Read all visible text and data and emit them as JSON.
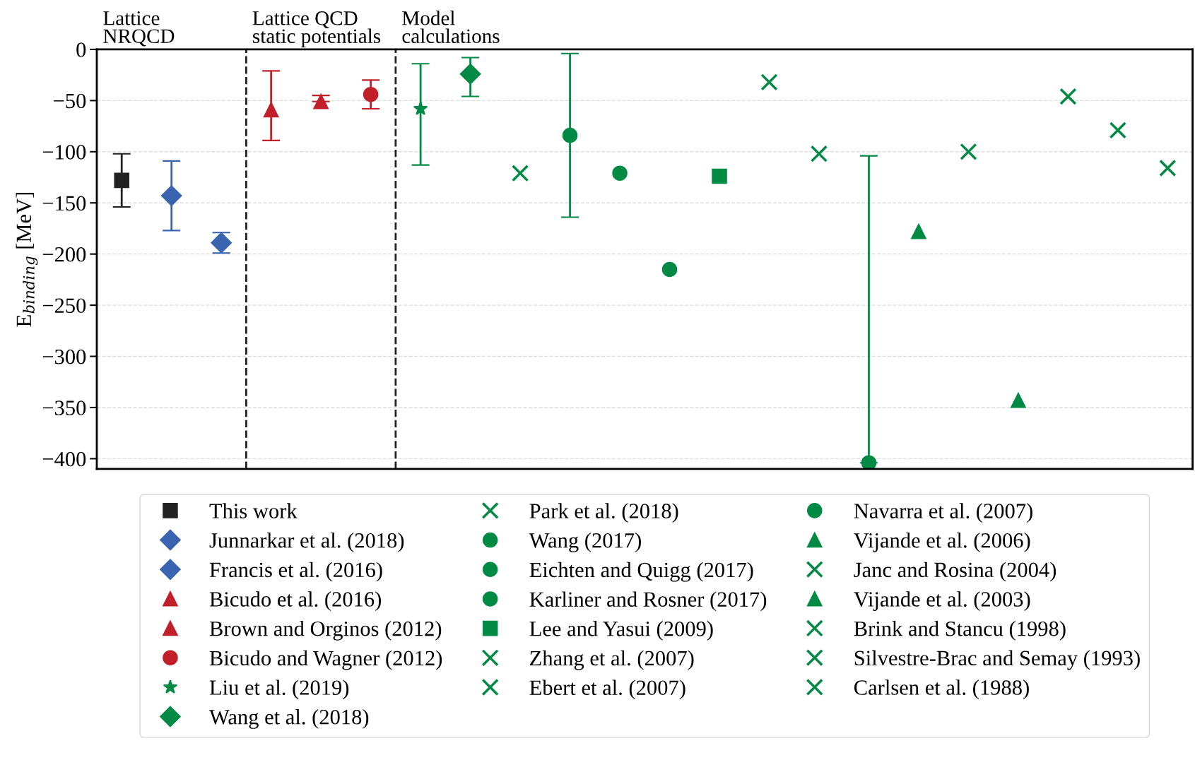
{
  "chart_data": {
    "type": "scatter",
    "categories": [
      null,
      null,
      null,
      null,
      null,
      null,
      null,
      null,
      null,
      null,
      null,
      null,
      null,
      null,
      null,
      null,
      null,
      null,
      null,
      null,
      null,
      null
    ],
    "ylabel": "E$_{binding}$ [MeV]",
    "ylim": [
      -410,
      0
    ],
    "yticks": [
      0,
      {
        "value": -50,
        "label": "−50"
      },
      {
        "value": -100,
        "label": "−100"
      },
      {
        "value": -150,
        "label": "−150"
      },
      {
        "value": -200,
        "label": "−200"
      },
      {
        "value": -250,
        "label": "−250"
      },
      {
        "value": -300,
        "label": "−300"
      },
      {
        "value": -350,
        "label": "−350"
      },
      {
        "value": -400,
        "label": "−400"
      }
    ],
    "tick_labels": "y",
    "grid": "y",
    "legend": "bottom",
    "annotations": [
      "Lattice\nNRQCD",
      "Lattice QCD\nstatic potentials",
      "Model\ncalculations"
    ],
    "series": [
      {
        "name": "This work",
        "color": "#222222",
        "marker": "square",
        "values": [
          -128,
          null,
          null,
          null,
          null,
          null,
          null,
          null,
          null,
          null,
          null,
          null,
          null,
          null,
          null,
          null,
          null,
          null,
          null,
          null,
          null,
          null
        ],
        "errors": [
          [
            -154,
            -102
          ],
          null,
          null,
          null,
          null,
          null,
          null,
          null,
          null,
          null,
          null,
          null,
          null,
          null,
          null,
          null,
          null,
          null,
          null,
          null,
          null,
          null
        ]
      },
      {
        "name": "Junnarkar et al. (2018)",
        "color": "#3a64b0",
        "marker": "diamond",
        "values": [
          null,
          -143,
          null,
          null,
          null,
          null,
          null,
          null,
          null,
          null,
          null,
          null,
          null,
          null,
          null,
          null,
          null,
          null,
          null,
          null,
          null,
          null
        ],
        "errors": [
          null,
          [
            -177,
            -109
          ],
          null,
          null,
          null,
          null,
          null,
          null,
          null,
          null,
          null,
          null,
          null,
          null,
          null,
          null,
          null,
          null,
          null,
          null,
          null,
          null
        ]
      },
      {
        "name": "Francis et al. (2016)",
        "color": "#3a64b0",
        "marker": "diamond",
        "values": [
          null,
          null,
          -189,
          null,
          null,
          null,
          null,
          null,
          null,
          null,
          null,
          null,
          null,
          null,
          null,
          null,
          null,
          null,
          null,
          null,
          null,
          null
        ],
        "errors": [
          null,
          null,
          [
            -199,
            -179
          ],
          null,
          null,
          null,
          null,
          null,
          null,
          null,
          null,
          null,
          null,
          null,
          null,
          null,
          null,
          null,
          null,
          null,
          null,
          null
        ]
      },
      {
        "name": "Bicudo et al. (2016)",
        "color": "#c1202a",
        "marker": "triangle",
        "values": [
          null,
          null,
          null,
          -59,
          null,
          null,
          null,
          null,
          null,
          null,
          null,
          null,
          null,
          null,
          null,
          null,
          null,
          null,
          null,
          null,
          null,
          null
        ],
        "errors": [
          null,
          null,
          null,
          [
            -89,
            -21
          ],
          null,
          null,
          null,
          null,
          null,
          null,
          null,
          null,
          null,
          null,
          null,
          null,
          null,
          null,
          null,
          null,
          null,
          null
        ]
      },
      {
        "name": "Brown and Orginos (2012)",
        "color": "#c1202a",
        "marker": "triangle",
        "values": [
          null,
          null,
          null,
          null,
          -51,
          null,
          null,
          null,
          null,
          null,
          null,
          null,
          null,
          null,
          null,
          null,
          null,
          null,
          null,
          null,
          null,
          null
        ],
        "errors": [
          null,
          null,
          null,
          null,
          [
            -51,
            -45
          ],
          null,
          null,
          null,
          null,
          null,
          null,
          null,
          null,
          null,
          null,
          null,
          null,
          null,
          null,
          null,
          null,
          null
        ]
      },
      {
        "name": "Bicudo and Wagner (2012)",
        "color": "#c1202a",
        "marker": "circle",
        "values": [
          null,
          null,
          null,
          null,
          null,
          -44,
          null,
          null,
          null,
          null,
          null,
          null,
          null,
          null,
          null,
          null,
          null,
          null,
          null,
          null,
          null,
          null
        ],
        "errors": [
          null,
          null,
          null,
          null,
          null,
          [
            -58,
            -30
          ],
          null,
          null,
          null,
          null,
          null,
          null,
          null,
          null,
          null,
          null,
          null,
          null,
          null,
          null,
          null,
          null
        ]
      },
      {
        "name": "Liu et al. (2019)",
        "color": "#008a43",
        "marker": "star",
        "values": [
          null,
          null,
          null,
          null,
          null,
          null,
          -58,
          null,
          null,
          null,
          null,
          null,
          null,
          null,
          null,
          null,
          null,
          null,
          null,
          null,
          null,
          null
        ],
        "errors": [
          null,
          null,
          null,
          null,
          null,
          null,
          [
            -113,
            -14
          ],
          null,
          null,
          null,
          null,
          null,
          null,
          null,
          null,
          null,
          null,
          null,
          null,
          null,
          null,
          null
        ]
      },
      {
        "name": "Wang et al. (2018)",
        "color": "#008a43",
        "marker": "diamond",
        "values": [
          null,
          null,
          null,
          null,
          null,
          null,
          null,
          -24,
          null,
          null,
          null,
          null,
          null,
          null,
          null,
          null,
          null,
          null,
          null,
          null,
          null,
          null
        ],
        "errors": [
          null,
          null,
          null,
          null,
          null,
          null,
          null,
          [
            -46,
            -8
          ],
          null,
          null,
          null,
          null,
          null,
          null,
          null,
          null,
          null,
          null,
          null,
          null,
          null,
          null
        ]
      },
      {
        "name": "Park et al. (2018)",
        "color": "#008a43",
        "marker": "cross",
        "values": [
          null,
          null,
          null,
          null,
          null,
          null,
          null,
          null,
          -121,
          null,
          null,
          null,
          null,
          null,
          null,
          null,
          null,
          null,
          null,
          null,
          null,
          null
        ]
      },
      {
        "name": "Wang (2017)",
        "color": "#008a43",
        "marker": "circle",
        "values": [
          null,
          null,
          null,
          null,
          null,
          null,
          null,
          null,
          null,
          -84,
          null,
          null,
          null,
          null,
          null,
          null,
          null,
          null,
          null,
          null,
          null,
          null
        ],
        "errors": [
          null,
          null,
          null,
          null,
          null,
          null,
          null,
          null,
          null,
          [
            -164,
            -4
          ],
          null,
          null,
          null,
          null,
          null,
          null,
          null,
          null,
          null,
          null,
          null,
          null
        ]
      },
      {
        "name": "Eichten and Quigg (2017)",
        "color": "#008a43",
        "marker": "circle",
        "values": [
          null,
          null,
          null,
          null,
          null,
          null,
          null,
          null,
          null,
          null,
          -121,
          null,
          null,
          null,
          null,
          null,
          null,
          null,
          null,
          null,
          null,
          null
        ]
      },
      {
        "name": "Karliner and Rosner (2017)",
        "color": "#008a43",
        "marker": "circle",
        "values": [
          null,
          null,
          null,
          null,
          null,
          null,
          null,
          null,
          null,
          null,
          null,
          -215,
          null,
          null,
          null,
          null,
          null,
          null,
          null,
          null,
          null,
          null
        ]
      },
      {
        "name": "Lee and Yasui (2009)",
        "color": "#008a43",
        "marker": "square",
        "values": [
          null,
          null,
          null,
          null,
          null,
          null,
          null,
          null,
          null,
          null,
          null,
          null,
          -124,
          null,
          null,
          null,
          null,
          null,
          null,
          null,
          null,
          null
        ]
      },
      {
        "name": "Zhang et al. (2007)",
        "color": "#008a43",
        "marker": "cross",
        "values": [
          null,
          null,
          null,
          null,
          null,
          null,
          null,
          null,
          null,
          null,
          null,
          null,
          null,
          -32,
          null,
          null,
          null,
          null,
          null,
          null,
          null,
          null
        ]
      },
      {
        "name": "Ebert et al. (2007)",
        "color": "#008a43",
        "marker": "cross",
        "values": [
          null,
          null,
          null,
          null,
          null,
          null,
          null,
          null,
          null,
          null,
          null,
          null,
          null,
          null,
          -102,
          null,
          null,
          null,
          null,
          null,
          null,
          null
        ]
      },
      {
        "name": "Navarra et al. (2007)",
        "color": "#008a43",
        "marker": "circle",
        "values": [
          null,
          null,
          null,
          null,
          null,
          null,
          null,
          null,
          null,
          null,
          null,
          null,
          null,
          null,
          null,
          -404,
          null,
          null,
          null,
          null,
          null,
          null
        ],
        "errors": [
          null,
          null,
          null,
          null,
          null,
          null,
          null,
          null,
          null,
          null,
          null,
          null,
          null,
          null,
          null,
          [
            -404,
            -104
          ],
          null,
          null,
          null,
          null,
          null,
          null
        ]
      },
      {
        "name": "Vijande et al. (2006)",
        "color": "#008a43",
        "marker": "triangle",
        "values": [
          null,
          null,
          null,
          null,
          null,
          null,
          null,
          null,
          null,
          null,
          null,
          null,
          null,
          null,
          null,
          null,
          -178,
          null,
          null,
          null,
          null,
          null
        ]
      },
      {
        "name": "Janc and Rosina (2004)",
        "color": "#008a43",
        "marker": "cross",
        "values": [
          null,
          null,
          null,
          null,
          null,
          null,
          null,
          null,
          null,
          null,
          null,
          null,
          null,
          null,
          null,
          null,
          null,
          -100,
          null,
          null,
          null,
          null
        ]
      },
      {
        "name": "Vijande et al. (2003)",
        "color": "#008a43",
        "marker": "triangle",
        "values": [
          null,
          null,
          null,
          null,
          null,
          null,
          null,
          null,
          null,
          null,
          null,
          null,
          null,
          null,
          null,
          null,
          null,
          null,
          -343,
          null,
          null,
          null
        ]
      },
      {
        "name": "Brink and Stancu (1998)",
        "color": "#008a43",
        "marker": "cross",
        "values": [
          null,
          null,
          null,
          null,
          null,
          null,
          null,
          null,
          null,
          null,
          null,
          null,
          null,
          null,
          null,
          null,
          null,
          null,
          null,
          -46,
          null,
          null
        ]
      },
      {
        "name": "Silvestre-Brac and Semay (1993)",
        "color": "#008a43",
        "marker": "cross",
        "values": [
          null,
          null,
          null,
          null,
          null,
          null,
          null,
          null,
          null,
          null,
          null,
          null,
          null,
          null,
          null,
          null,
          null,
          null,
          null,
          null,
          -79,
          null
        ]
      },
      {
        "name": "Carlsen et al. (1988)",
        "color": "#008a43",
        "marker": "cross",
        "values": [
          null,
          null,
          null,
          null,
          null,
          null,
          null,
          null,
          null,
          null,
          null,
          null,
          null,
          null,
          null,
          null,
          null,
          null,
          null,
          null,
          null,
          -116
        ]
      }
    ]
  }
}
